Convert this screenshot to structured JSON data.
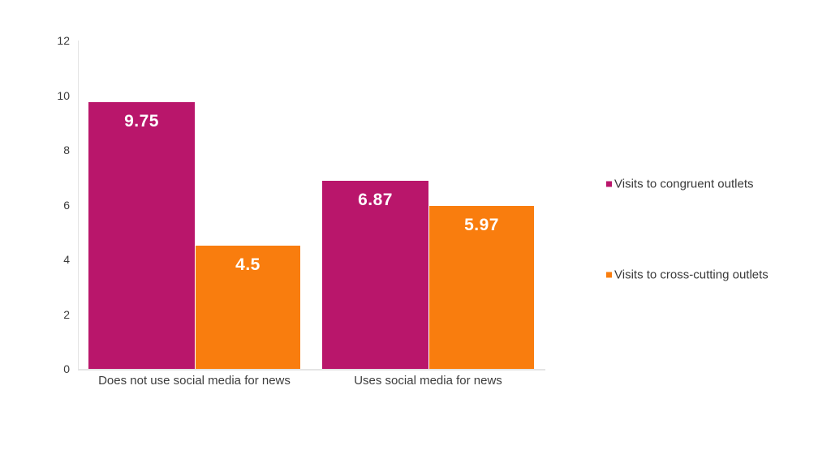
{
  "chart_data": {
    "type": "bar",
    "title": "",
    "categories": [
      "Does not use social media for news",
      "Uses social media for news"
    ],
    "series": [
      {
        "name": "Visits to congruent outlets",
        "color": "#b9166b",
        "values": [
          9.75,
          6.87
        ],
        "value_labels": [
          "9.75",
          "6.87"
        ]
      },
      {
        "name": "Visits to cross-cutting outlets",
        "color": "#f97d0e",
        "values": [
          4.5,
          5.97
        ],
        "value_labels": [
          "4.5",
          "5.97"
        ]
      }
    ],
    "y_axis": {
      "min": 0,
      "max": 12,
      "tick_step": 2,
      "tick_labels": [
        "0",
        "2",
        "4",
        "6",
        "8",
        "10",
        "12"
      ]
    },
    "xlabel": "",
    "ylabel": "",
    "grid": false,
    "legend_position": "right",
    "value_label_color": "#ffffff",
    "axis_line_color": "#e4e4e4",
    "text_color": "#3b3b3b"
  }
}
